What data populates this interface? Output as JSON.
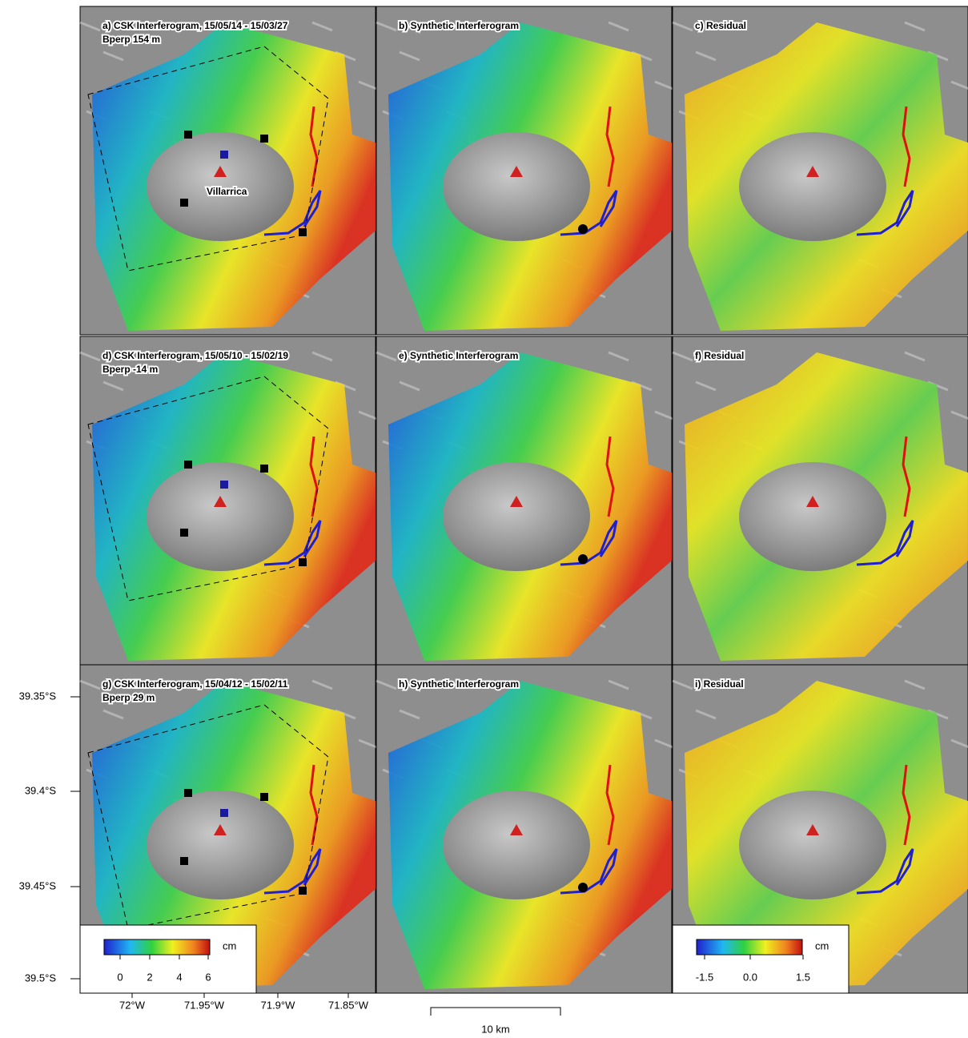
{
  "panels": [
    {
      "title": "a) CSK Interferogram, 15/05/14 - 15/03/27",
      "baseline": "Bperp 154 m",
      "place": "Villarrica"
    },
    {
      "title": "b) Synthetic Interferogram"
    },
    {
      "title": "c) Residual"
    },
    {
      "title": "d) CSK Interferogram, 15/05/10 - 15/02/19",
      "baseline": "Bperp -14 m"
    },
    {
      "title": "e) Synthetic Interferogram"
    },
    {
      "title": "f) Residual"
    },
    {
      "title": "g) CSK Interferogram, 15/04/12 - 15/02/11",
      "baseline": "Bperp 29 m"
    },
    {
      "title": "h) Synthetic Interferogram"
    },
    {
      "title": "i) Residual"
    }
  ],
  "latitude_labels": [
    "39.35°S",
    "39.4°S",
    "39.45°S",
    "39.5°S"
  ],
  "longitude_labels": [
    "72°W",
    "71.95°W",
    "71.9°W",
    "71.85°W"
  ],
  "scale_bar": "10 km",
  "colorbars": [
    {
      "unit": "cm",
      "tick_labels": [
        "0",
        "2",
        "4",
        "6"
      ]
    },
    {
      "unit": "cm",
      "tick_labels": [
        "-1.5",
        "0.0",
        "1.5"
      ]
    }
  ]
}
